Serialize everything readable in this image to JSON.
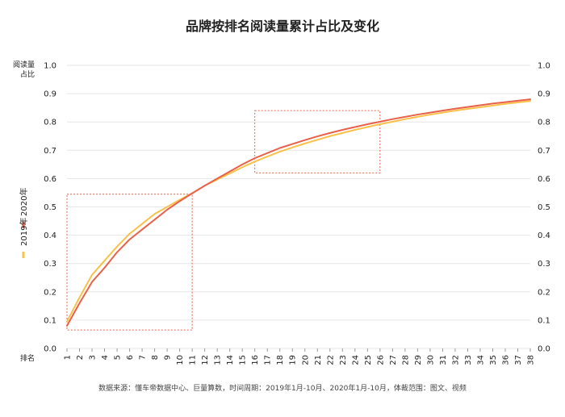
{
  "chart_data": {
    "type": "line",
    "title": "品牌按排名阅读量累计占比及变化",
    "ylabel_lines": [
      "阅读量",
      "占比"
    ],
    "xlabel": "排名",
    "ylim": [
      0,
      1.0
    ],
    "y_ticks": [
      "0.0",
      "0.1",
      "0.2",
      "0.3",
      "0.4",
      "0.5",
      "0.6",
      "0.7",
      "0.8",
      "0.9",
      "1.0"
    ],
    "y_tick_values": [
      0,
      0.1,
      0.2,
      0.3,
      0.4,
      0.5,
      0.6,
      0.7,
      0.8,
      0.9,
      1.0
    ],
    "x": [
      1,
      2,
      3,
      4,
      5,
      6,
      7,
      8,
      9,
      10,
      11,
      12,
      13,
      14,
      15,
      16,
      17,
      18,
      19,
      20,
      21,
      22,
      23,
      24,
      25,
      26,
      27,
      28,
      29,
      30,
      31,
      32,
      33,
      34,
      35,
      36,
      37,
      38
    ],
    "series": [
      {
        "name": "2020年",
        "color": "#e8614a",
        "values": [
          0.08,
          0.16,
          0.235,
          0.285,
          0.34,
          0.385,
          0.42,
          0.455,
          0.49,
          0.52,
          0.548,
          0.575,
          0.6,
          0.625,
          0.65,
          0.672,
          0.69,
          0.708,
          0.722,
          0.736,
          0.749,
          0.761,
          0.772,
          0.782,
          0.792,
          0.801,
          0.81,
          0.818,
          0.826,
          0.833,
          0.84,
          0.847,
          0.853,
          0.859,
          0.865,
          0.87,
          0.875,
          0.88
        ]
      },
      {
        "name": "2019年",
        "color": "#f7c14a",
        "values": [
          0.095,
          0.18,
          0.26,
          0.31,
          0.36,
          0.405,
          0.44,
          0.475,
          0.5,
          0.525,
          0.548,
          0.575,
          0.597,
          0.618,
          0.64,
          0.66,
          0.678,
          0.695,
          0.71,
          0.724,
          0.737,
          0.75,
          0.761,
          0.772,
          0.782,
          0.792,
          0.801,
          0.81,
          0.818,
          0.826,
          0.833,
          0.84,
          0.846,
          0.852,
          0.858,
          0.864,
          0.869,
          0.874
        ]
      }
    ],
    "annotations": [
      {
        "type": "dotted-rect",
        "x_range": [
          1,
          11
        ],
        "y_range": [
          0.065,
          0.545
        ],
        "color": "#e8614a"
      },
      {
        "type": "dotted-rect",
        "x_range": [
          16,
          26
        ],
        "y_range": [
          0.62,
          0.84
        ],
        "color": "#e8614a"
      }
    ],
    "grid": true,
    "legend_placement": "left-vertical",
    "footnote": "数据来源：懂车帝数据中心、巨量算数，时间周期：2019年1月-10月、2020年1月-10月，体裁范围：图文、视频"
  }
}
